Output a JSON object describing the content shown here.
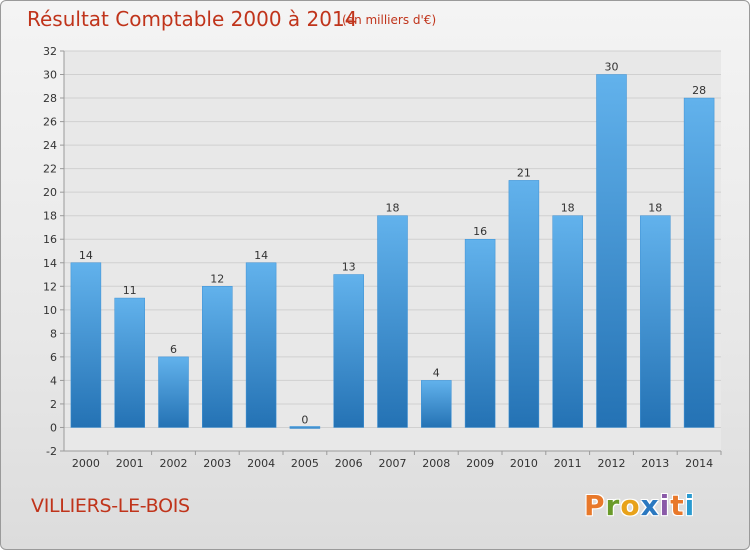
{
  "header": {
    "title": "Résultat Comptable 2000 à 2014",
    "subtitle": "(en milliers d'€)"
  },
  "footer": {
    "town": "VILLIERS-LE-BOIS",
    "logo": [
      "P",
      "r",
      "o",
      "x",
      "i",
      "t",
      "i"
    ]
  },
  "colors": {
    "title": "#c0341b",
    "bar_top": "#62b2ec",
    "bar_bottom": "#2472b4",
    "logo_letters": [
      "#e8782a",
      "#6a9a2a",
      "#e8a21a",
      "#2a78c0",
      "#8a5aa8",
      "#e8782a",
      "#2a9ad0"
    ]
  },
  "chart_data": {
    "type": "bar",
    "categories": [
      "2000",
      "2001",
      "2002",
      "2003",
      "2004",
      "2005",
      "2006",
      "2007",
      "2008",
      "2009",
      "2010",
      "2011",
      "2012",
      "2013",
      "2014"
    ],
    "values": [
      14,
      11,
      6,
      12,
      14,
      0,
      13,
      18,
      4,
      16,
      21,
      18,
      30,
      18,
      28
    ],
    "data_labels": [
      "14",
      "11",
      "6",
      "12",
      "14",
      "0",
      "13",
      "18",
      "4",
      "16",
      "21",
      "18",
      "30",
      "18",
      "28"
    ],
    "title": "Résultat Comptable 2000 à 2014",
    "xlabel": "",
    "ylabel": "",
    "ylim": [
      -2,
      32
    ],
    "yticks": [
      -2,
      0,
      2,
      4,
      6,
      8,
      10,
      12,
      14,
      16,
      18,
      20,
      22,
      24,
      26,
      28,
      30,
      32
    ],
    "grid": true,
    "legend": "none"
  }
}
